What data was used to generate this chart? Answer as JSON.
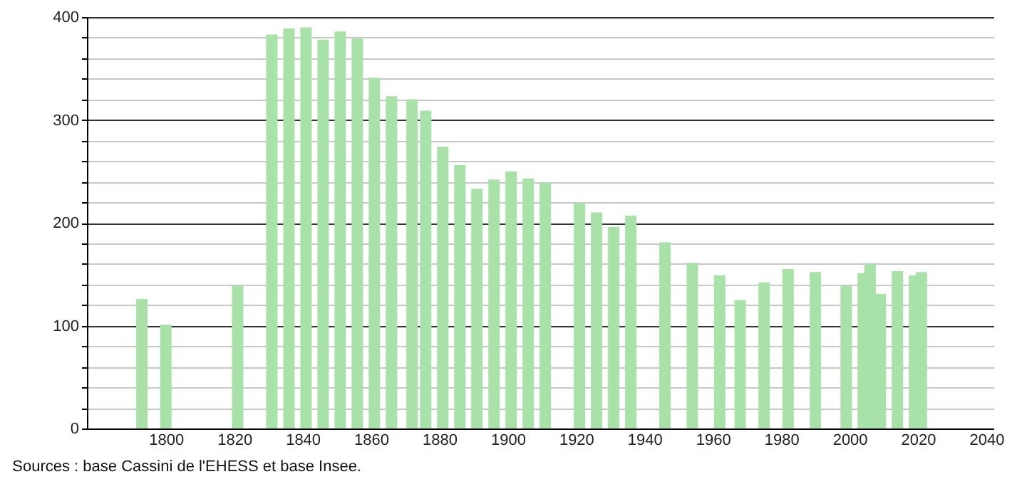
{
  "chart_data": {
    "type": "bar",
    "x": [
      1793,
      1800,
      1821,
      1831,
      1836,
      1841,
      1846,
      1851,
      1856,
      1861,
      1866,
      1872,
      1876,
      1881,
      1886,
      1891,
      1896,
      1901,
      1906,
      1911,
      1921,
      1926,
      1931,
      1936,
      1946,
      1954,
      1962,
      1968,
      1975,
      1982,
      1990,
      1999,
      2004,
      2006,
      2009,
      2014,
      2019,
      2021
    ],
    "values": [
      126,
      101,
      139,
      383,
      389,
      390,
      378,
      386,
      379,
      341,
      323,
      320,
      309,
      274,
      256,
      233,
      242,
      250,
      243,
      239,
      219,
      210,
      196,
      207,
      181,
      161,
      149,
      125,
      142,
      155,
      152,
      139,
      151,
      160,
      131,
      153,
      149,
      152
    ],
    "color": "#a8e2a8",
    "xlim": [
      1779,
      2040
    ],
    "xticks": [
      1800,
      1820,
      1840,
      1860,
      1880,
      1900,
      1920,
      1940,
      1960,
      1980,
      2000,
      2020,
      2040
    ],
    "ylim": [
      0,
      400
    ],
    "yticks": [
      0,
      {
        "value": 20,
        "label": null
      },
      {
        "value": 40,
        "label": null
      },
      {
        "value": 60,
        "label": null
      },
      {
        "value": 80,
        "label": null
      },
      100,
      {
        "value": 120,
        "label": null
      },
      {
        "value": 140,
        "label": null
      },
      {
        "value": 160,
        "label": null
      },
      {
        "value": 180,
        "label": null
      },
      200,
      {
        "value": 220,
        "label": null
      },
      {
        "value": 240,
        "label": null
      },
      {
        "value": 260,
        "label": null
      },
      {
        "value": 280,
        "label": null
      },
      300,
      {
        "value": 320,
        "label": null
      },
      {
        "value": 340,
        "label": null
      },
      {
        "value": 360,
        "label": null
      },
      {
        "value": 380,
        "label": null
      },
      400
    ],
    "grid": "y",
    "annotations": [
      "Sources : base Cassini de l'EHESS et base Insee."
    ]
  }
}
